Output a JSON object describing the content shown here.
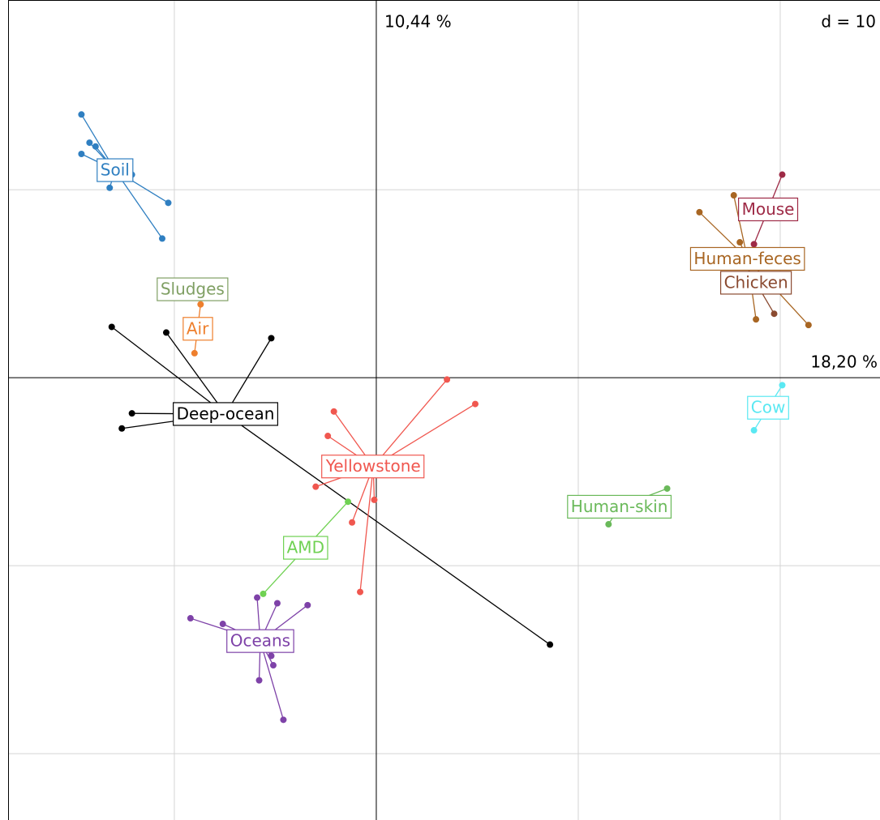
{
  "chart_data": {
    "type": "scatter",
    "x_axis_label": "18,20 %",
    "y_axis_label": "10,44 %",
    "scale_label": "d = 10",
    "xlim": [
      -18.23,
      24.94
    ],
    "ylim": [
      -23.53,
      20.09
    ],
    "xticks": [
      -10,
      0,
      10,
      20
    ],
    "yticks": [
      -20,
      -10,
      0,
      10
    ],
    "grid": true,
    "series": [
      {
        "name": "Soil",
        "color": "#2f7fc1",
        "x": [
          -14.6,
          -14.2,
          -13.9,
          -14.6,
          -12.1,
          -13.2,
          -10.3,
          -10.6
        ],
        "values": [
          14.0,
          12.5,
          12.3,
          11.9,
          10.8,
          10.1,
          9.3,
          7.4
        ]
      },
      {
        "name": "Sludges",
        "color": "#7f9f63",
        "x": [
          -9.1
        ],
        "values": [
          4.7
        ]
      },
      {
        "name": "Air",
        "color": "#ee7f2d",
        "x": [
          -8.7,
          -9.0
        ],
        "values": [
          3.9,
          1.3
        ]
      },
      {
        "name": "Deep-ocean",
        "color": "#000000",
        "x": [
          -13.1,
          -10.4,
          -5.2,
          -12.1,
          -12.6,
          8.6
        ],
        "values": [
          2.7,
          2.4,
          2.1,
          -1.9,
          -2.7,
          -14.2
        ]
      },
      {
        "name": "Yellowstone",
        "color": "#f0574f",
        "x": [
          3.5,
          4.9,
          -2.1,
          -2.4,
          -3.0,
          -0.1,
          -1.2,
          -0.8
        ],
        "values": [
          -0.1,
          -1.4,
          -1.8,
          -3.1,
          -5.8,
          -6.5,
          -7.7,
          -11.4
        ]
      },
      {
        "name": "AMD",
        "color": "#6fd152",
        "x": [
          -1.4,
          -5.6
        ],
        "values": [
          -6.6,
          -11.5
        ]
      },
      {
        "name": "Oceans",
        "color": "#7e42a8",
        "x": [
          -9.2,
          -7.6,
          -5.9,
          -4.9,
          -3.4,
          -5.2,
          -5.1,
          -5.8,
          -4.6
        ],
        "values": [
          -12.8,
          -13.1,
          -11.7,
          -12.0,
          -12.1,
          -14.8,
          -15.3,
          -16.1,
          -18.2
        ]
      },
      {
        "name": "Human-skin",
        "color": "#6ab95a",
        "x": [
          14.4,
          11.5,
          10.2
        ],
        "values": [
          -5.9,
          -7.8,
          -6.9
        ]
      },
      {
        "name": "Cow",
        "color": "#5ae8f2",
        "x": [
          20.1,
          18.7
        ],
        "values": [
          -0.4,
          -2.8
        ]
      },
      {
        "name": "Mouse",
        "color": "#9e2a46",
        "x": [
          20.1,
          18.7
        ],
        "values": [
          10.8,
          7.1
        ]
      },
      {
        "name": "Human-feces",
        "color": "#a86623",
        "x": [
          16.0,
          17.7,
          18.0,
          21.4,
          18.8
        ],
        "values": [
          8.8,
          9.7,
          7.2,
          2.8,
          3.1
        ]
      },
      {
        "name": "Chicken",
        "color": "#8a4a30",
        "x": [
          19.7,
          17.9
        ],
        "values": [
          3.4,
          6.7
        ]
      }
    ]
  }
}
